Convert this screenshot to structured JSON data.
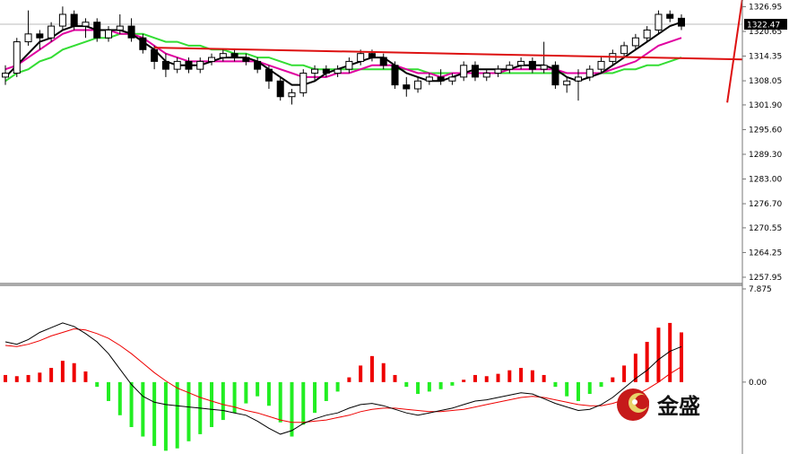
{
  "chart_data": [
    {
      "type": "candlestick",
      "y_axis_ticks": [
        1326.95,
        1320.65,
        1314.35,
        1308.05,
        1301.9,
        1295.6,
        1289.3,
        1283.0,
        1276.7,
        1270.55,
        1264.25,
        1257.95
      ],
      "y_axis_tick_labels": [
        "1326.95",
        "1320.65",
        "1314.35",
        "1308.05",
        "1301.90",
        "1295.60",
        "1289.30",
        "1283.00",
        "1276.70",
        "1270.55",
        "1264.25",
        "1257.95"
      ],
      "ylim": [
        1256.8,
        1328.2
      ],
      "current_price": 1322.47,
      "current_price_label": "1322.47",
      "candles": [
        [
          1309,
          1312,
          1307,
          1310
        ],
        [
          1310,
          1319,
          1309,
          1318
        ],
        [
          1318,
          1326,
          1317,
          1320
        ],
        [
          1320,
          1321,
          1316,
          1319
        ],
        [
          1319,
          1323,
          1318,
          1322
        ],
        [
          1322,
          1327,
          1321,
          1325
        ],
        [
          1325,
          1326,
          1321,
          1322
        ],
        [
          1322,
          1324,
          1319,
          1323
        ],
        [
          1323,
          1324,
          1318,
          1319
        ],
        [
          1319,
          1322,
          1318,
          1321
        ],
        [
          1321,
          1325,
          1320,
          1322
        ],
        [
          1322,
          1324,
          1318,
          1319
        ],
        [
          1319,
          1320,
          1315,
          1316
        ],
        [
          1316,
          1317,
          1311,
          1313
        ],
        [
          1313,
          1315,
          1309,
          1311
        ],
        [
          1311,
          1314,
          1310,
          1313
        ],
        [
          1313,
          1314,
          1310,
          1311
        ],
        [
          1311,
          1314,
          1310,
          1313
        ],
        [
          1313,
          1315,
          1312,
          1314
        ],
        [
          1314,
          1316,
          1313,
          1315
        ],
        [
          1315,
          1316,
          1313,
          1314
        ],
        [
          1314,
          1315,
          1312,
          1313
        ],
        [
          1313,
          1314,
          1310,
          1311
        ],
        [
          1311,
          1312,
          1306,
          1308
        ],
        [
          1308,
          1309,
          1303,
          1304
        ],
        [
          1304,
          1306,
          1302,
          1305
        ],
        [
          1305,
          1311,
          1304,
          1310
        ],
        [
          1310,
          1312,
          1308,
          1311
        ],
        [
          1311,
          1312,
          1309,
          1310
        ],
        [
          1310,
          1312,
          1309,
          1311
        ],
        [
          1311,
          1314,
          1310,
          1313
        ],
        [
          1313,
          1316,
          1312,
          1315
        ],
        [
          1315,
          1316,
          1313,
          1314
        ],
        [
          1314,
          1315,
          1311,
          1312
        ],
        [
          1312,
          1313,
          1306,
          1307
        ],
        [
          1307,
          1309,
          1304,
          1306
        ],
        [
          1306,
          1309,
          1305,
          1308
        ],
        [
          1308,
          1310,
          1307,
          1309
        ],
        [
          1309,
          1311,
          1307,
          1308
        ],
        [
          1308,
          1310,
          1307,
          1309
        ],
        [
          1309,
          1313,
          1308,
          1312
        ],
        [
          1312,
          1313,
          1308,
          1309
        ],
        [
          1309,
          1311,
          1308,
          1310
        ],
        [
          1310,
          1312,
          1309,
          1311
        ],
        [
          1311,
          1313,
          1310,
          1312
        ],
        [
          1312,
          1314,
          1311,
          1313
        ],
        [
          1313,
          1314,
          1310,
          1311
        ],
        [
          1311,
          1318,
          1310,
          1312
        ],
        [
          1312,
          1313,
          1306,
          1307
        ],
        [
          1307,
          1309,
          1305,
          1308
        ],
        [
          1308,
          1311,
          1303,
          1309
        ],
        [
          1309,
          1312,
          1308,
          1311
        ],
        [
          1311,
          1314,
          1310,
          1313
        ],
        [
          1313,
          1316,
          1312,
          1315
        ],
        [
          1315,
          1318,
          1314,
          1317
        ],
        [
          1317,
          1320,
          1316,
          1319
        ],
        [
          1319,
          1322,
          1318,
          1321
        ],
        [
          1321,
          1326,
          1320,
          1325
        ],
        [
          1325,
          1326,
          1323,
          1324
        ],
        [
          1324,
          1325,
          1321,
          1322
        ]
      ],
      "moving_averages": [
        {
          "color": "#000000",
          "values": [
            1309,
            1312,
            1315,
            1318,
            1319,
            1321,
            1322,
            1322,
            1321,
            1321,
            1321,
            1320,
            1318,
            1316,
            1313,
            1312,
            1312,
            1312,
            1313,
            1314,
            1314,
            1314,
            1313,
            1311,
            1309,
            1307,
            1307,
            1308,
            1310,
            1311,
            1312,
            1313,
            1314,
            1314,
            1312,
            1310,
            1309,
            1308,
            1308,
            1309,
            1310,
            1311,
            1311,
            1311,
            1311,
            1312,
            1312,
            1312,
            1311,
            1309,
            1308,
            1309,
            1310,
            1312,
            1314,
            1316,
            1318,
            1320,
            1322,
            1323
          ]
        },
        {
          "color": "#e000a0",
          "values": [
            1311,
            1312,
            1314,
            1316,
            1318,
            1320,
            1321,
            1321,
            1321,
            1321,
            1320,
            1320,
            1319,
            1317,
            1315,
            1314,
            1313,
            1313,
            1313,
            1313,
            1313,
            1313,
            1313,
            1312,
            1311,
            1310,
            1309,
            1309,
            1309,
            1310,
            1310,
            1311,
            1312,
            1312,
            1312,
            1311,
            1310,
            1310,
            1309,
            1310,
            1310,
            1310,
            1310,
            1310,
            1311,
            1311,
            1311,
            1311,
            1311,
            1310,
            1310,
            1310,
            1310,
            1311,
            1312,
            1313,
            1315,
            1317,
            1318,
            1319
          ]
        },
        {
          "color": "#33dd33",
          "values": [
            1308,
            1310,
            1311,
            1313,
            1314,
            1316,
            1317,
            1318,
            1319,
            1319,
            1320,
            1320,
            1320,
            1319,
            1318,
            1318,
            1317,
            1317,
            1316,
            1316,
            1315,
            1315,
            1314,
            1314,
            1313,
            1312,
            1312,
            1311,
            1311,
            1311,
            1311,
            1311,
            1311,
            1311,
            1311,
            1311,
            1311,
            1310,
            1310,
            1310,
            1310,
            1310,
            1310,
            1310,
            1310,
            1310,
            1310,
            1310,
            1310,
            1310,
            1310,
            1310,
            1310,
            1310,
            1311,
            1311,
            1312,
            1312,
            1313,
            1314
          ]
        }
      ],
      "trend_lines": [
        {
          "color": "#dd1111",
          "points": [
            [
              13,
              1316.5
            ],
            [
              78,
              1313.5
            ]
          ]
        },
        {
          "color": "#dd1111",
          "points": [
            [
              63,
              1302.5
            ],
            [
              79,
              1329
            ]
          ]
        }
      ]
    },
    {
      "type": "macd",
      "y_axis_tick_labels": [
        "7.875",
        "0.00"
      ],
      "y_axis_ticks": [
        7.875,
        0
      ],
      "ylim": [
        -6,
        7.875
      ],
      "histogram": [
        0.6,
        0.5,
        0.6,
        0.8,
        1.2,
        1.8,
        1.6,
        0.9,
        -0.4,
        -1.6,
        -2.8,
        -3.8,
        -4.6,
        -5.4,
        -5.8,
        -5.6,
        -5.0,
        -4.4,
        -3.8,
        -3.2,
        -2.6,
        -1.8,
        -1.2,
        -2.0,
        -3.4,
        -4.6,
        -3.6,
        -2.6,
        -1.6,
        -0.8,
        0.4,
        1.4,
        2.2,
        1.6,
        0.6,
        -0.4,
        -1.0,
        -0.8,
        -0.6,
        -0.3,
        0.2,
        0.6,
        0.5,
        0.7,
        1.0,
        1.2,
        1.0,
        0.6,
        -0.4,
        -1.2,
        -1.6,
        -1.0,
        -0.4,
        0.4,
        1.4,
        2.4,
        3.4,
        4.6,
        5.0,
        4.2
      ],
      "macd_line": [
        3.4,
        3.2,
        3.6,
        4.2,
        4.6,
        5.0,
        4.7,
        4.1,
        3.4,
        2.4,
        1.1,
        -0.2,
        -1.2,
        -1.7,
        -1.9,
        -2.0,
        -2.1,
        -2.2,
        -2.3,
        -2.4,
        -2.6,
        -2.8,
        -3.3,
        -3.9,
        -4.4,
        -4.1,
        -3.5,
        -3.1,
        -2.8,
        -2.6,
        -2.2,
        -1.9,
        -1.8,
        -2.0,
        -2.3,
        -2.6,
        -2.8,
        -2.6,
        -2.4,
        -2.2,
        -1.9,
        -1.6,
        -1.5,
        -1.3,
        -1.1,
        -0.9,
        -1.0,
        -1.4,
        -1.8,
        -2.1,
        -2.4,
        -2.3,
        -1.9,
        -1.3,
        -0.5,
        0.3,
        1.0,
        1.9,
        2.6,
        3.0
      ],
      "signal_line": [
        3.1,
        3.0,
        3.2,
        3.5,
        3.9,
        4.2,
        4.5,
        4.4,
        4.1,
        3.7,
        3.1,
        2.4,
        1.6,
        0.8,
        0.1,
        -0.5,
        -0.9,
        -1.3,
        -1.6,
        -1.9,
        -2.1,
        -2.4,
        -2.6,
        -2.9,
        -3.2,
        -3.4,
        -3.4,
        -3.3,
        -3.2,
        -3.0,
        -2.8,
        -2.5,
        -2.3,
        -2.2,
        -2.2,
        -2.3,
        -2.4,
        -2.5,
        -2.5,
        -2.4,
        -2.3,
        -2.1,
        -1.9,
        -1.7,
        -1.5,
        -1.3,
        -1.2,
        -1.3,
        -1.5,
        -1.7,
        -1.9,
        -2.0,
        -2.0,
        -1.8,
        -1.5,
        -1.1,
        -0.6,
        0.0,
        0.7,
        1.3
      ],
      "colors": {
        "positive": "#ee0000",
        "negative": "#22ee22",
        "macd": "#000000",
        "signal": "#ee0000"
      }
    }
  ],
  "watermark": {
    "text": "金盛"
  }
}
